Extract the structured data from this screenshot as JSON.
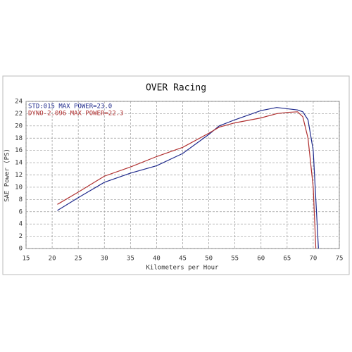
{
  "chart_data": {
    "type": "line",
    "title": "OVER Racing",
    "x_label": "Kilometers per Hour",
    "y_label": "SAE Power (PS)",
    "xlim": [
      15,
      75
    ],
    "xticks": [
      15,
      20,
      25,
      30,
      35,
      40,
      45,
      50,
      55,
      60,
      65,
      70,
      75
    ],
    "ylim": [
      0,
      24
    ],
    "yticks": [
      0,
      2,
      4,
      6,
      8,
      10,
      12,
      14,
      16,
      18,
      20,
      22,
      24
    ],
    "grid": true,
    "series": [
      {
        "name": "STD:015  MAX POWER=23.0",
        "color": "#1f2a8c",
        "x": [
          21,
          25,
          30,
          35,
          40,
          45,
          50,
          52,
          55,
          60,
          63,
          65,
          67,
          68,
          69,
          70,
          70.5,
          71
        ],
        "values": [
          6.2,
          8.3,
          10.8,
          12.3,
          13.5,
          15.5,
          18.6,
          20,
          21,
          22.5,
          23,
          22.8,
          22.6,
          22.3,
          21,
          16,
          8,
          0
        ]
      },
      {
        "name": "DYNO-2.096  MAX POWER=22.3",
        "color": "#b03030",
        "x": [
          21,
          25,
          30,
          35,
          40,
          45,
          50,
          52,
          55,
          60,
          63,
          65,
          67,
          68,
          69,
          70,
          70.5
        ],
        "values": [
          7.2,
          9.2,
          11.8,
          13.3,
          15,
          16.5,
          18.8,
          19.8,
          20.5,
          21.3,
          22,
          22.2,
          22.3,
          21.5,
          18,
          10,
          0
        ]
      }
    ]
  }
}
